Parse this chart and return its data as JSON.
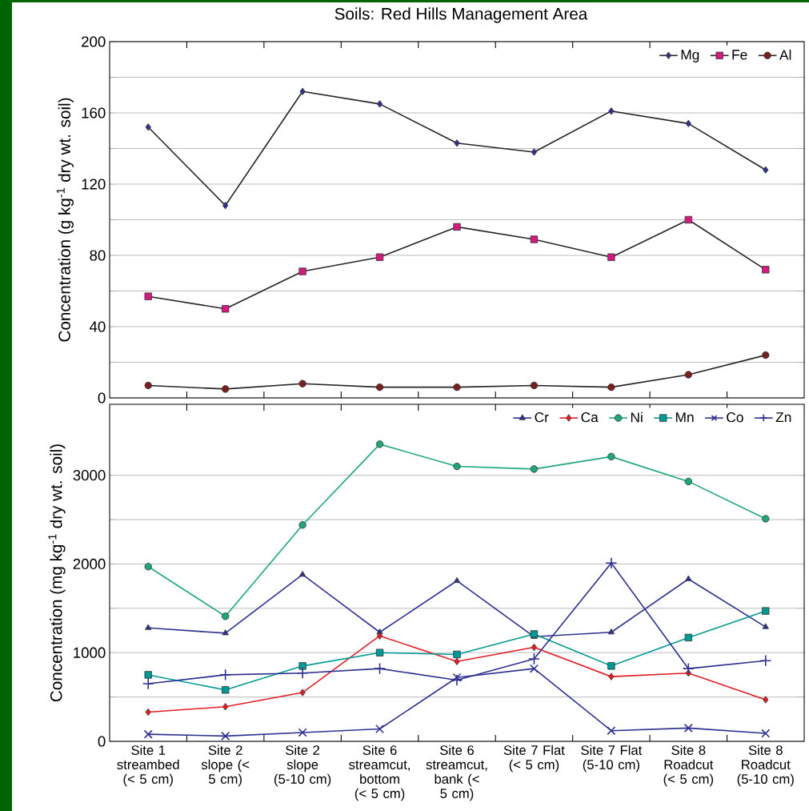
{
  "chart_data": [
    {
      "type": "line",
      "title": "Soils: Red Hills Management Area",
      "ylabel": "Concentration (g kg$^{-1}$ dry wt. soil)",
      "categories": [
        null,
        null,
        null,
        null,
        null,
        null,
        null,
        null,
        null
      ],
      "series": [
        {
          "name": "Mg",
          "color": "#2e3192",
          "marker": "diamond",
          "values": [
            152,
            108,
            172,
            165,
            143,
            138,
            161,
            154,
            128
          ]
        },
        {
          "name": "Fe",
          "color": "#d6197f",
          "marker": "square",
          "values": [
            57,
            50,
            71,
            79,
            96,
            89,
            79,
            100,
            72
          ]
        },
        {
          "name": "Al",
          "color": "#7a1f1f",
          "marker": "circle",
          "values": [
            7,
            5,
            8,
            6,
            6,
            7,
            6,
            13,
            24
          ]
        }
      ],
      "ylim": [
        0,
        200
      ],
      "yticks": [
        0,
        40,
        80,
        120,
        160,
        200
      ],
      "grid": "y",
      "legend": "top right",
      "tick_labels": "y"
    },
    {
      "type": "line",
      "ylabel": "Concentration (mg kg$^{-1}$ dry wt. soil)",
      "categories": [
        "Site 1 streambed (< 5 cm)",
        "Site 2 slope (< 5 cm)",
        "Site 2 slope (5-10 cm)",
        "Site 6 streamcut, bottom (< 5 cm)",
        "Site 6 streamcut, bank (< 5 cm)",
        "Site 7 Flat (< 5 cm)",
        "Site 7 Flat (5-10 cm)",
        "Site 8 Roadcut (< 5 cm)",
        "Site 8 Roadcut (5-10 cm)"
      ],
      "series": [
        {
          "name": "Cr",
          "color": "#2e3192",
          "marker": "triangle",
          "values": [
            1280,
            1220,
            1880,
            1230,
            1810,
            1180,
            1230,
            1830,
            1290
          ]
        },
        {
          "name": "Ca",
          "color": "#e31e24",
          "marker": "diamond",
          "values": [
            330,
            390,
            550,
            1190,
            900,
            1060,
            730,
            770,
            470
          ]
        },
        {
          "name": "Ni",
          "color": "#1fa67a",
          "marker": "circle",
          "values": [
            1970,
            1410,
            2440,
            3350,
            3100,
            3070,
            3210,
            2930,
            2510
          ]
        },
        {
          "name": "Mn",
          "color": "#009a96",
          "marker": "square",
          "values": [
            750,
            580,
            850,
            1000,
            980,
            1210,
            850,
            1170,
            1470
          ]
        },
        {
          "name": "Co",
          "color": "#2e3192",
          "marker": "cross",
          "values": [
            80,
            60,
            100,
            140,
            720,
            820,
            120,
            150,
            90
          ]
        },
        {
          "name": "Zn",
          "color": "#2e3192",
          "marker": "plus",
          "values": [
            650,
            750,
            770,
            820,
            690,
            930,
            2010,
            820,
            910
          ]
        }
      ],
      "ylim": [
        0,
        3800
      ],
      "yticks": [
        0,
        1000,
        2000,
        3000
      ],
      "grid": "y",
      "legend": "top right"
    }
  ]
}
